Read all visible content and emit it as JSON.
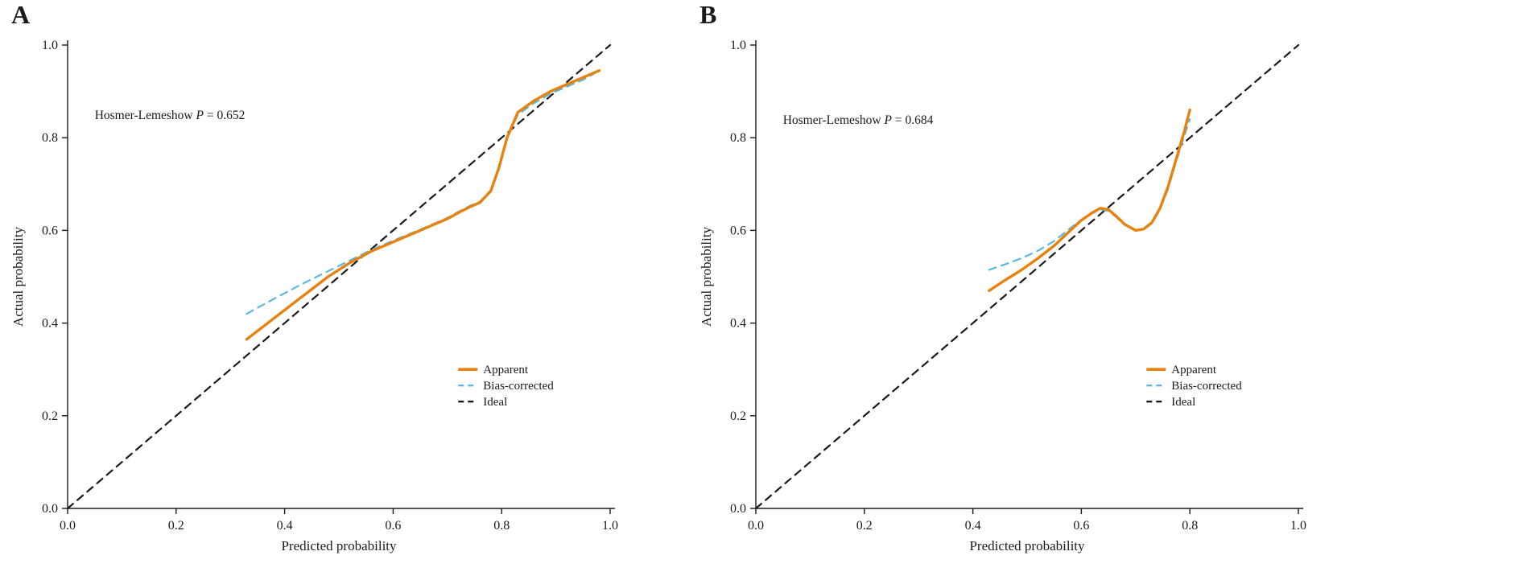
{
  "figure": {
    "background": "#ffffff",
    "text_color": "#1a1a1a"
  },
  "chart_data": [
    {
      "type": "line",
      "panel_label": "A",
      "title": "",
      "xlabel": "Predicted probability",
      "ylabel": "Actual probability",
      "xlim": [
        0,
        1
      ],
      "ylim": [
        0,
        1
      ],
      "ticks": [
        0.0,
        0.2,
        0.4,
        0.6,
        0.8,
        1.0
      ],
      "grid": "off",
      "annotation": {
        "prefix": "Hosmer-Lemeshow",
        "stat": "P",
        "equals": "=",
        "value": "0.652"
      },
      "annotation_xy": [
        0.05,
        0.84
      ],
      "legend": [
        "Apparent",
        "Bias-corrected",
        "Ideal"
      ],
      "legend_xy": [
        0.72,
        0.3
      ],
      "series": [
        {
          "name": "Ideal",
          "color": "#1a1a1a",
          "dash": "dashed",
          "width": 2.2,
          "x": [
            0,
            1
          ],
          "y": [
            0,
            1
          ]
        },
        {
          "name": "Bias-corrected",
          "color": "#5BB8E6",
          "dash": "dashed",
          "width": 2.2,
          "x": [
            0.33,
            0.38,
            0.43,
            0.48,
            0.52,
            0.56,
            0.6,
            0.64,
            0.67,
            0.7,
            0.72,
            0.74,
            0.76,
            0.78,
            0.795,
            0.81,
            0.83,
            0.86,
            0.89,
            0.92,
            0.95,
            0.97
          ],
          "y": [
            0.42,
            0.452,
            0.483,
            0.512,
            0.535,
            0.558,
            0.578,
            0.597,
            0.612,
            0.627,
            0.64,
            0.652,
            0.662,
            0.687,
            0.737,
            0.8,
            0.85,
            0.875,
            0.895,
            0.91,
            0.925,
            0.938
          ]
        },
        {
          "name": "Apparent",
          "color": "#E8820E",
          "dash": "solid",
          "width": 3.4,
          "x": [
            0.33,
            0.38,
            0.43,
            0.48,
            0.52,
            0.56,
            0.6,
            0.64,
            0.67,
            0.7,
            0.72,
            0.74,
            0.76,
            0.78,
            0.795,
            0.81,
            0.83,
            0.86,
            0.89,
            0.92,
            0.95,
            0.98
          ],
          "y": [
            0.365,
            0.41,
            0.455,
            0.5,
            0.53,
            0.555,
            0.575,
            0.595,
            0.61,
            0.625,
            0.638,
            0.65,
            0.66,
            0.685,
            0.735,
            0.8,
            0.855,
            0.88,
            0.9,
            0.915,
            0.93,
            0.945
          ]
        }
      ]
    },
    {
      "type": "line",
      "panel_label": "B",
      "title": "",
      "xlabel": "Predicted probability",
      "ylabel": "Actual probability",
      "xlim": [
        0,
        1
      ],
      "ylim": [
        0,
        1
      ],
      "ticks": [
        0.0,
        0.2,
        0.4,
        0.6,
        0.8,
        1.0
      ],
      "grid": "off",
      "annotation": {
        "prefix": "Hosmer-Lemeshow",
        "stat": "P",
        "equals": "=",
        "value": "0.684"
      },
      "annotation_xy": [
        0.05,
        0.83
      ],
      "legend": [
        "Apparent",
        "Bias-corrected",
        "Ideal"
      ],
      "legend_xy": [
        0.72,
        0.3
      ],
      "series": [
        {
          "name": "Ideal",
          "color": "#1a1a1a",
          "dash": "dashed",
          "width": 2.2,
          "x": [
            0,
            1
          ],
          "y": [
            0,
            1
          ]
        },
        {
          "name": "Bias-corrected",
          "color": "#5BB8E6",
          "dash": "dashed",
          "width": 2.2,
          "x": [
            0.43,
            0.46,
            0.49,
            0.52,
            0.55,
            0.58,
            0.6,
            0.62,
            0.635,
            0.65,
            0.665,
            0.68,
            0.7,
            0.715,
            0.73,
            0.745,
            0.76,
            0.775,
            0.79,
            0.8
          ],
          "y": [
            0.515,
            0.527,
            0.54,
            0.556,
            0.577,
            0.605,
            0.623,
            0.637,
            0.645,
            0.642,
            0.628,
            0.612,
            0.6,
            0.602,
            0.615,
            0.645,
            0.69,
            0.75,
            0.805,
            0.84
          ]
        },
        {
          "name": "Apparent",
          "color": "#E8820E",
          "dash": "solid",
          "width": 3.4,
          "x": [
            0.43,
            0.46,
            0.49,
            0.52,
            0.55,
            0.58,
            0.6,
            0.62,
            0.635,
            0.65,
            0.665,
            0.68,
            0.7,
            0.715,
            0.73,
            0.745,
            0.76,
            0.775,
            0.79,
            0.8
          ],
          "y": [
            0.47,
            0.493,
            0.515,
            0.54,
            0.567,
            0.6,
            0.622,
            0.638,
            0.648,
            0.645,
            0.63,
            0.613,
            0.6,
            0.603,
            0.617,
            0.648,
            0.695,
            0.755,
            0.815,
            0.86
          ]
        }
      ]
    }
  ]
}
